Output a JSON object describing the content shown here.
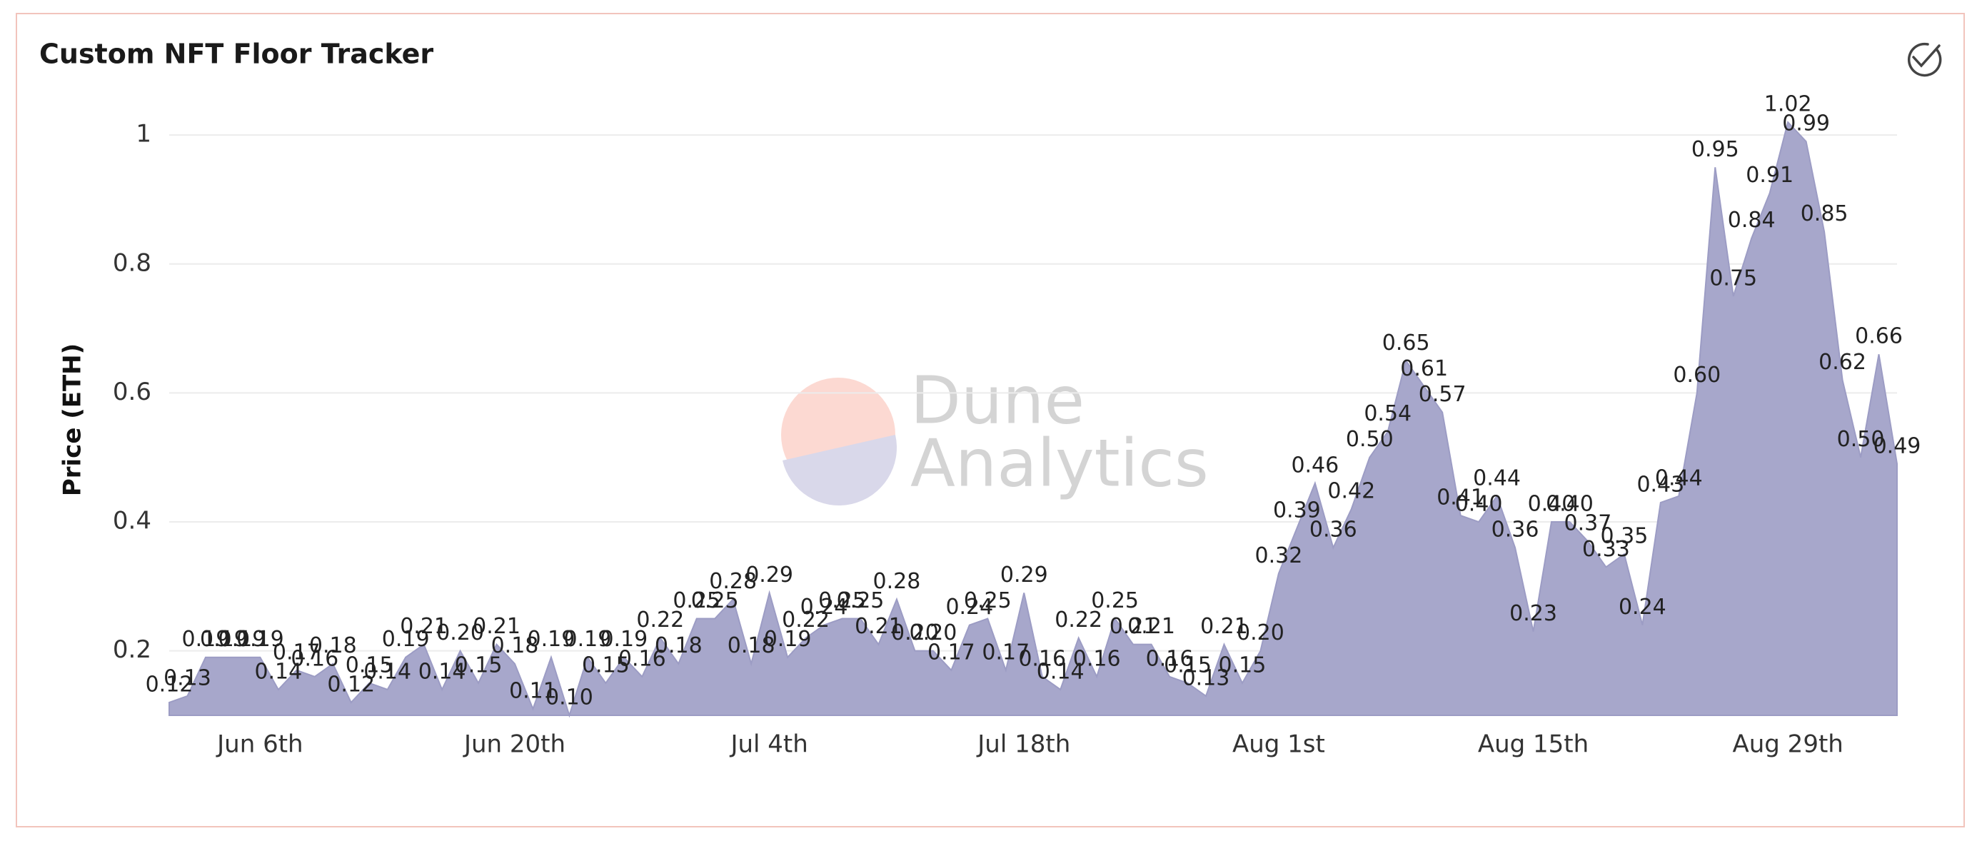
{
  "chart_data": {
    "type": "area",
    "title": "Custom NFT Floor Tracker",
    "y_label": "Price (ETH)",
    "watermark": [
      "Dune",
      "Analytics"
    ],
    "color": "#a7a7cb",
    "categories": [
      null,
      null,
      null,
      null,
      null,
      "Jun 6th",
      null,
      null,
      null,
      null,
      null,
      null,
      null,
      null,
      null,
      null,
      null,
      null,
      null,
      "Jun 20th",
      null,
      null,
      null,
      null,
      null,
      null,
      null,
      null,
      null,
      null,
      null,
      null,
      null,
      "Jul 4th",
      null,
      null,
      null,
      null,
      null,
      null,
      null,
      null,
      null,
      null,
      null,
      null,
      null,
      "Jul 18th",
      null,
      null,
      null,
      null,
      null,
      null,
      null,
      null,
      null,
      null,
      null,
      null,
      null,
      "Aug 1st",
      null,
      null,
      null,
      null,
      null,
      null,
      null,
      null,
      null,
      null,
      null,
      null,
      null,
      "Aug 15th",
      null,
      null,
      null,
      null,
      null,
      null,
      null,
      null,
      null,
      null,
      null,
      null,
      null,
      "Aug 29th",
      null,
      null,
      null,
      null,
      null,
      null
    ],
    "values": [
      0.12,
      0.13,
      0.19,
      0.19,
      0.19,
      0.19,
      0.14,
      0.17,
      0.16,
      0.18,
      0.12,
      0.15,
      0.14,
      0.19,
      0.21,
      0.14,
      0.2,
      0.15,
      0.21,
      0.18,
      0.11,
      0.19,
      0.1,
      0.19,
      0.15,
      0.19,
      0.16,
      0.22,
      0.18,
      0.25,
      0.25,
      0.28,
      0.18,
      0.29,
      0.19,
      0.22,
      0.24,
      0.25,
      0.25,
      0.21,
      0.28,
      0.2,
      0.2,
      0.17,
      0.24,
      0.25,
      0.17,
      0.29,
      0.16,
      0.14,
      0.22,
      0.16,
      0.25,
      0.21,
      0.21,
      0.16,
      0.15,
      0.13,
      0.21,
      0.15,
      0.2,
      0.32,
      0.39,
      0.46,
      0.36,
      0.42,
      0.5,
      0.54,
      0.65,
      0.61,
      0.57,
      0.41,
      0.4,
      0.44,
      0.36,
      0.23,
      0.4,
      0.4,
      0.37,
      0.33,
      0.35,
      0.24,
      0.43,
      0.44,
      0.6,
      0.95,
      0.75,
      0.84,
      0.91,
      1.02,
      0.99,
      0.85,
      0.62,
      0.5,
      0.66,
      0.49
    ],
    "value_labels": [
      "0.12",
      "0.13",
      "0.19",
      "0.19",
      "0.19",
      "0.19",
      "0.14",
      "0.17",
      "0.16",
      "0.18",
      "0.12",
      "0.15",
      "0.14",
      "0.19",
      "0.21",
      "0.14",
      "0.20",
      "0.15",
      "0.21",
      "0.18",
      "0.11",
      "0.19",
      "0.10",
      "0.19",
      "0.15",
      "0.19",
      "0.16",
      "0.22",
      "0.18",
      "0.25",
      "0.25",
      "0.28",
      "0.18",
      "0.29",
      "0.19",
      "0.22",
      "0.24",
      "0.25",
      "0.25",
      "0.21",
      "0.28",
      "0.20",
      "0.20",
      "0.17",
      "0.24",
      "0.25",
      "0.17",
      "0.29",
      "0.16",
      "0.14",
      "0.22",
      "0.16",
      "0.25",
      "0.21",
      "0.21",
      "0.16",
      "0.15",
      "0.13",
      "0.21",
      "0.15",
      "0.20",
      "0.32",
      "0.39",
      "0.46",
      "0.36",
      "0.42",
      "0.50",
      "0.54",
      "0.65",
      "0.61",
      "0.57",
      "0.41",
      "0.40",
      "0.44",
      "0.36",
      "0.23",
      "0.40",
      "0.40",
      "0.37",
      "0.33",
      "0.35",
      "0.24",
      "0.43",
      "0.44",
      "0.60",
      "0.95",
      "0.75",
      "0.84",
      "0.91",
      "1.02",
      "0.99",
      "0.85",
      "0.62",
      "0.50",
      "0.66",
      "0.49"
    ],
    "ylim": [
      0.1,
      1.05
    ],
    "yticks": [
      0.2,
      0.4,
      0.6,
      0.8,
      1
    ],
    "grid": true
  }
}
